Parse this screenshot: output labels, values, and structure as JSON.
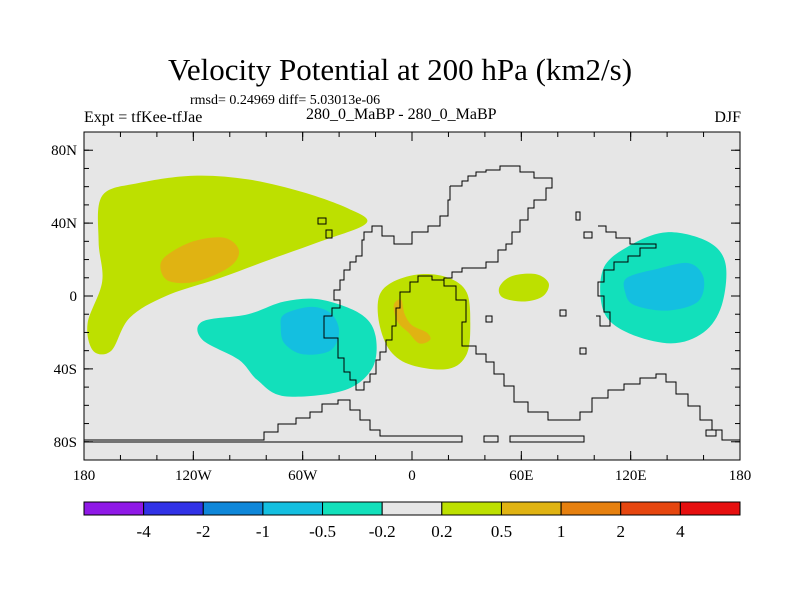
{
  "header": {
    "title": "Velocity Potential at 200 hPa (km2/s)",
    "stats": "rmsd= 0.24969 diff= 5.03013e-06",
    "expt": "Expt = tfKee-tfJae",
    "experiments": "280_0_MaBP - 280_0_MaBP",
    "season": "DJF"
  },
  "chart_data": {
    "type": "heatmap",
    "title": "Velocity Potential at 200 hPa (km2/s)",
    "xlabel": "",
    "ylabel": "",
    "xlim": [
      -180,
      180
    ],
    "ylim": [
      -90,
      90
    ],
    "x_ticks": [
      {
        "value": -180,
        "label": "180"
      },
      {
        "value": -120,
        "label": "120W"
      },
      {
        "value": -60,
        "label": "60W"
      },
      {
        "value": 0,
        "label": "0"
      },
      {
        "value": 60,
        "label": "60E"
      },
      {
        "value": 120,
        "label": "120E"
      },
      {
        "value": 180,
        "label": "180"
      }
    ],
    "y_ticks": [
      {
        "value": 80,
        "label": "80N"
      },
      {
        "value": 40,
        "label": "40N"
      },
      {
        "value": 0,
        "label": "0"
      },
      {
        "value": -40,
        "label": "40S"
      },
      {
        "value": -80,
        "label": "80S"
      }
    ],
    "background_color": "#e6e6e6",
    "levels": [
      "-4",
      "-2",
      "-1",
      "-0.5",
      "-0.2",
      "0.2",
      "0.5",
      "1",
      "2",
      "4"
    ],
    "colors": [
      "#8f19e6",
      "#3132e6",
      "#0f87d9",
      "#14bfe0",
      "#12e0bb",
      "#e6e6e6",
      "#bde000",
      "#e0b312",
      "#e6800f",
      "#e6460f",
      "#e60f0f"
    ],
    "regions": [
      {
        "name": "Pacific/Americas positive region",
        "value_range": "0.2 to 0.5",
        "points": [
          [
            -170,
            55
          ],
          [
            -150,
            62
          ],
          [
            -120,
            66
          ],
          [
            -90,
            64
          ],
          [
            -60,
            57
          ],
          [
            -35,
            48
          ],
          [
            -25,
            40
          ],
          [
            -50,
            30
          ],
          [
            -78,
            20
          ],
          [
            -105,
            10
          ],
          [
            -135,
            0
          ],
          [
            -155,
            -12
          ],
          [
            -165,
            -30
          ],
          [
            -175,
            -30
          ],
          [
            -178,
            -15
          ],
          [
            -170,
            8
          ],
          [
            -172,
            30
          ]
        ]
      },
      {
        "name": "Eastern Pacific maximum",
        "value_range": "0.5 to 1",
        "points": [
          [
            -135,
            22
          ],
          [
            -120,
            30
          ],
          [
            -103,
            32
          ],
          [
            -95,
            25
          ],
          [
            -100,
            16
          ],
          [
            -118,
            8
          ],
          [
            -133,
            8
          ],
          [
            -138,
            15
          ]
        ]
      },
      {
        "name": "South America negative region",
        "value_range": "-0.5 to -0.2",
        "points": [
          [
            -115,
            -14
          ],
          [
            -90,
            -10
          ],
          [
            -70,
            -3
          ],
          [
            -50,
            -2
          ],
          [
            -28,
            -10
          ],
          [
            -20,
            -22
          ],
          [
            -22,
            -40
          ],
          [
            -38,
            -52
          ],
          [
            -70,
            -55
          ],
          [
            -85,
            -46
          ],
          [
            -95,
            -35
          ],
          [
            -115,
            -24
          ]
        ]
      },
      {
        "name": "South America minimum",
        "value_range": "-1 to -0.5",
        "points": [
          [
            -70,
            -10
          ],
          [
            -55,
            -6
          ],
          [
            -44,
            -10
          ],
          [
            -40,
            -20
          ],
          [
            -45,
            -30
          ],
          [
            -60,
            -32
          ],
          [
            -70,
            -26
          ],
          [
            -72,
            -17
          ]
        ]
      },
      {
        "name": "Africa positive region",
        "value_range": "0.2 to 0.5",
        "points": [
          [
            -18,
            0
          ],
          [
            -10,
            8
          ],
          [
            5,
            12
          ],
          [
            20,
            10
          ],
          [
            30,
            2
          ],
          [
            32,
            -15
          ],
          [
            30,
            -32
          ],
          [
            20,
            -40
          ],
          [
            0,
            -38
          ],
          [
            -12,
            -30
          ],
          [
            -18,
            -15
          ]
        ]
      },
      {
        "name": "Africa maximum",
        "value_range": "0.5 to 1",
        "points": [
          [
            -10,
            -5
          ],
          [
            -6,
            -2
          ],
          [
            -4,
            -10
          ],
          [
            0,
            -16
          ],
          [
            8,
            -20
          ],
          [
            10,
            -24
          ],
          [
            4,
            -26
          ],
          [
            -2,
            -20
          ],
          [
            -8,
            -14
          ]
        ]
      },
      {
        "name": "Arabian Sea positive region",
        "value_range": "0.2 to 0.5",
        "points": [
          [
            48,
            5
          ],
          [
            55,
            11
          ],
          [
            68,
            12
          ],
          [
            75,
            7
          ],
          [
            72,
            0
          ],
          [
            62,
            -3
          ],
          [
            50,
            -1
          ]
        ]
      },
      {
        "name": "West Pacific negative region",
        "value_range": "-0.5 to -0.2",
        "points": [
          [
            105,
            15
          ],
          [
            120,
            28
          ],
          [
            140,
            35
          ],
          [
            162,
            30
          ],
          [
            172,
            18
          ],
          [
            170,
            -5
          ],
          [
            160,
            -20
          ],
          [
            142,
            -26
          ],
          [
            118,
            -20
          ],
          [
            105,
            -8
          ]
        ]
      },
      {
        "name": "West Pacific minimum",
        "value_range": "-1 to -0.5",
        "points": [
          [
            118,
            10
          ],
          [
            135,
            15
          ],
          [
            152,
            18
          ],
          [
            160,
            10
          ],
          [
            157,
            -3
          ],
          [
            140,
            -8
          ],
          [
            122,
            -5
          ],
          [
            117,
            2
          ]
        ]
      }
    ]
  }
}
